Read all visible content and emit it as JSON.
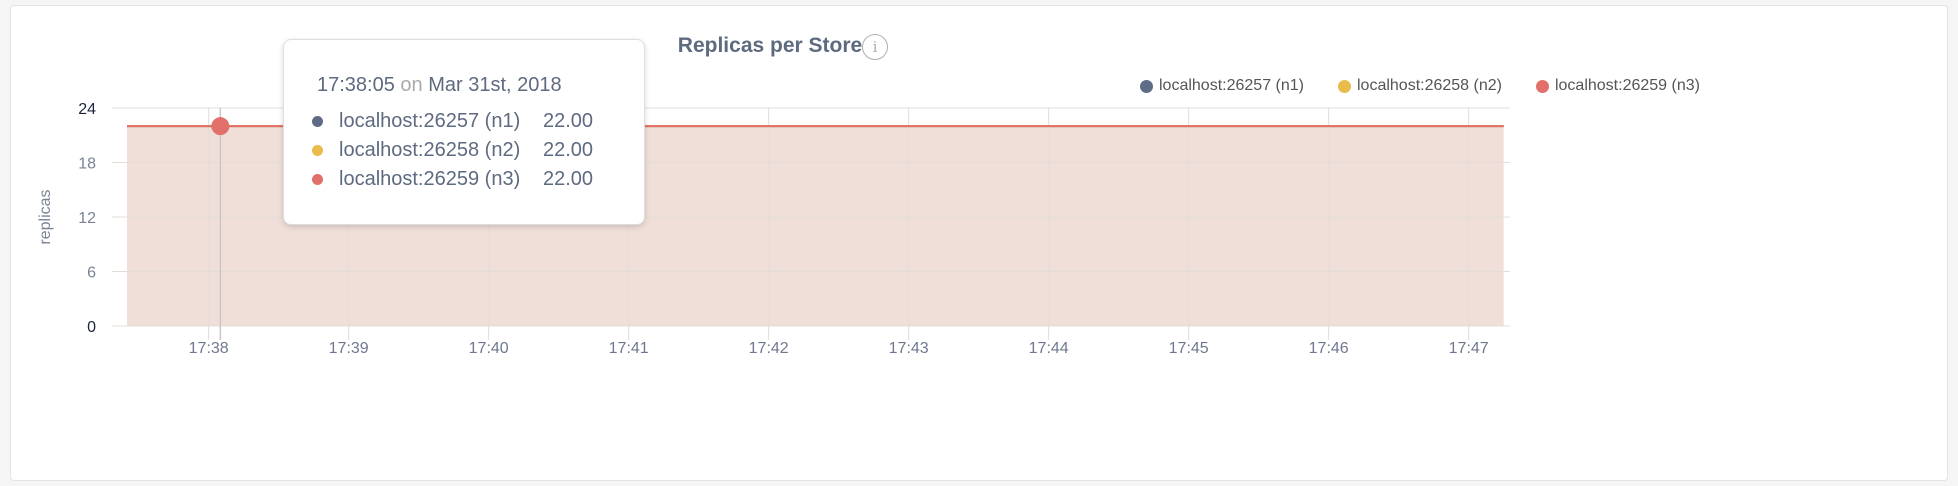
{
  "chart_data": {
    "type": "area",
    "title": "Replicas per Store",
    "ylabel": "replicas",
    "xlabel": "",
    "ylim": [
      0,
      24
    ],
    "yticks": [
      "0",
      "6",
      "12",
      "18",
      "24"
    ],
    "xlim": [
      "17:37:25",
      "17:47:15"
    ],
    "xticks": [
      "17:38",
      "17:39",
      "17:40",
      "17:41",
      "17:42",
      "17:43",
      "17:44",
      "17:45",
      "17:46",
      "17:47"
    ],
    "grid": true,
    "legend_position": "top-right",
    "series": [
      {
        "name": "localhost:26257 (n1)",
        "color": "#5f6c87",
        "x": [
          "17:37:25",
          "17:47:15"
        ],
        "values": [
          22,
          22
        ]
      },
      {
        "name": "localhost:26258 (n2)",
        "color": "#e9bb4a",
        "x": [
          "17:37:25",
          "17:47:15"
        ],
        "values": [
          22,
          22
        ]
      },
      {
        "name": "localhost:26259 (n3)",
        "color": "#e2706a",
        "x": [
          "17:37:25",
          "17:47:15"
        ],
        "values": [
          22,
          22
        ]
      }
    ],
    "fill_color": "#efdfd8",
    "hover": {
      "time": "17:38:05",
      "on": "on",
      "date": "Mar 31st, 2018",
      "rows": [
        {
          "name": "localhost:26257 (n1)",
          "value": "22.00",
          "color": "#5f6c87"
        },
        {
          "name": "localhost:26258 (n2)",
          "value": "22.00",
          "color": "#e9bb4a"
        },
        {
          "name": "localhost:26259 (n3)",
          "value": "22.00",
          "color": "#e2706a"
        }
      ]
    }
  },
  "info_icon": "i"
}
